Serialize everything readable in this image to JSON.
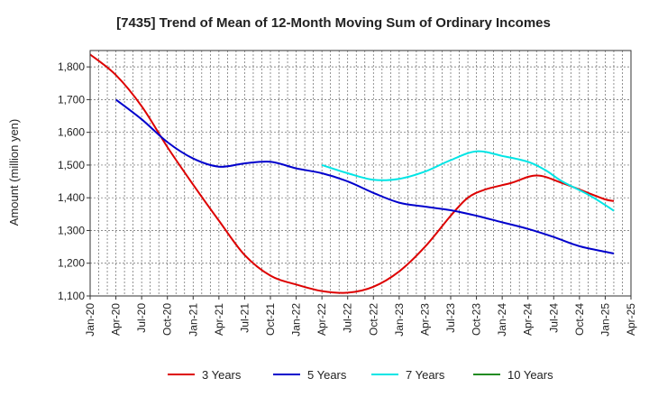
{
  "chart_data": {
    "type": "line",
    "title": "[7435]  Trend of Mean of 12-Month Moving Sum of Ordinary Incomes",
    "xlabel": "",
    "ylabel": "Amount (million yen)",
    "ylim": [
      1100,
      1850
    ],
    "yticks": [
      1100,
      1200,
      1300,
      1400,
      1500,
      1600,
      1700,
      1800
    ],
    "ytick_labels": [
      "1,100",
      "1,200",
      "1,300",
      "1,400",
      "1,500",
      "1,600",
      "1,700",
      "1,800"
    ],
    "x_range_months": [
      0,
      63
    ],
    "xtick_labels": [
      "Jan-20",
      "Apr-20",
      "Jul-20",
      "Oct-20",
      "Jan-21",
      "Apr-21",
      "Jul-21",
      "Oct-21",
      "Jan-22",
      "Apr-22",
      "Jul-22",
      "Oct-22",
      "Jan-23",
      "Apr-23",
      "Jul-23",
      "Oct-23",
      "Jan-24",
      "Apr-24",
      "Jul-24",
      "Oct-24",
      "Jan-25",
      "Apr-25"
    ],
    "grid": true,
    "legend_position": "bottom",
    "series": [
      {
        "name": "3 Years",
        "color": "#dd0000",
        "points": [
          [
            0,
            1838
          ],
          [
            3,
            1775
          ],
          [
            6,
            1680
          ],
          [
            9,
            1555
          ],
          [
            12,
            1440
          ],
          [
            15,
            1330
          ],
          [
            18,
            1225
          ],
          [
            21,
            1162
          ],
          [
            24,
            1135
          ],
          [
            27,
            1115
          ],
          [
            30,
            1110
          ],
          [
            33,
            1128
          ],
          [
            36,
            1175
          ],
          [
            39,
            1250
          ],
          [
            42,
            1345
          ],
          [
            44,
            1400
          ],
          [
            46,
            1425
          ],
          [
            49,
            1445
          ],
          [
            52,
            1468
          ],
          [
            55,
            1445
          ],
          [
            58,
            1415
          ],
          [
            60,
            1395
          ],
          [
            61,
            1390
          ]
        ]
      },
      {
        "name": "5 Years",
        "color": "#0000cc",
        "points": [
          [
            3,
            1700
          ],
          [
            6,
            1640
          ],
          [
            9,
            1570
          ],
          [
            12,
            1520
          ],
          [
            15,
            1495
          ],
          [
            18,
            1505
          ],
          [
            21,
            1510
          ],
          [
            24,
            1490
          ],
          [
            27,
            1475
          ],
          [
            30,
            1450
          ],
          [
            33,
            1415
          ],
          [
            36,
            1385
          ],
          [
            39,
            1373
          ],
          [
            42,
            1362
          ],
          [
            45,
            1345
          ],
          [
            48,
            1325
          ],
          [
            51,
            1305
          ],
          [
            54,
            1280
          ],
          [
            57,
            1252
          ],
          [
            60,
            1235
          ],
          [
            61,
            1230
          ]
        ]
      },
      {
        "name": "7 Years",
        "color": "#00e5e5",
        "points": [
          [
            27,
            1500
          ],
          [
            30,
            1475
          ],
          [
            33,
            1455
          ],
          [
            36,
            1458
          ],
          [
            39,
            1480
          ],
          [
            42,
            1515
          ],
          [
            45,
            1542
          ],
          [
            48,
            1528
          ],
          [
            51,
            1510
          ],
          [
            53,
            1485
          ],
          [
            55,
            1450
          ],
          [
            58,
            1410
          ],
          [
            60,
            1378
          ],
          [
            61,
            1360
          ]
        ]
      },
      {
        "name": "10 Years",
        "color": "#228b22",
        "points": []
      }
    ]
  }
}
